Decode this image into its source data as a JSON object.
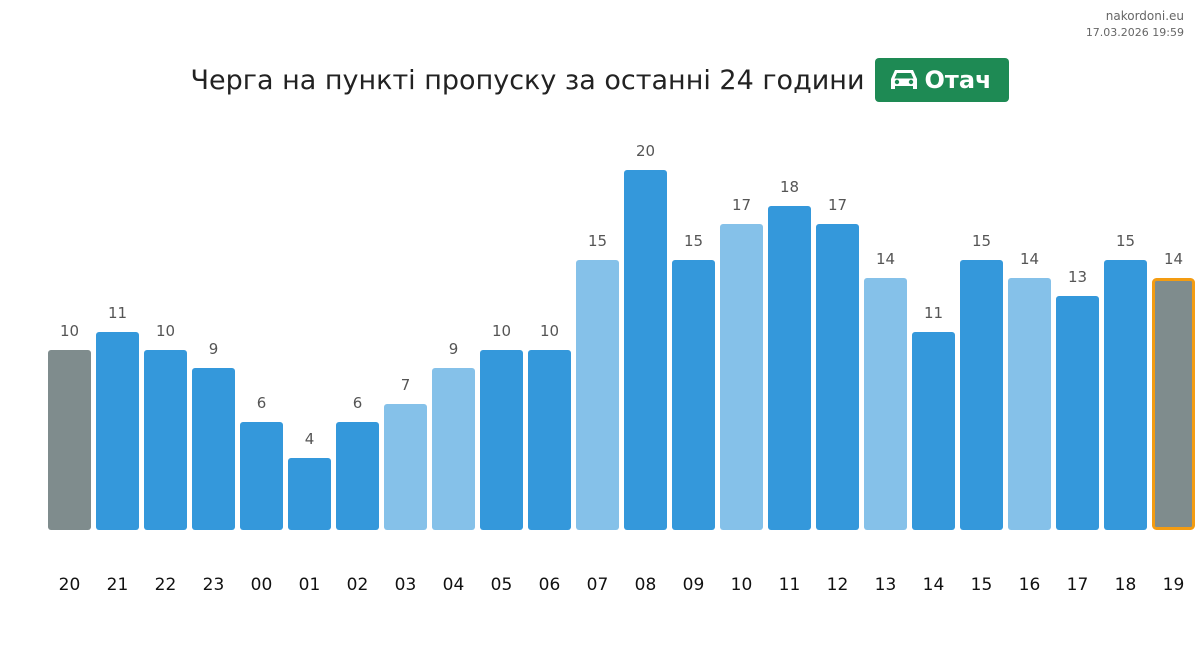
{
  "header": {
    "site": "nakordoni.eu",
    "timestamp": "17.03.2026 19:59",
    "title": "Черга на пункті пропуску за останні 24 години",
    "badge_label": "Отач",
    "badge_icon": "car-icon",
    "badge_color": "#1e8a54"
  },
  "chart_data": {
    "type": "bar",
    "categories": [
      "20",
      "21",
      "22",
      "23",
      "00",
      "01",
      "02",
      "03",
      "04",
      "05",
      "06",
      "07",
      "08",
      "09",
      "10",
      "11",
      "12",
      "13",
      "14",
      "15",
      "16",
      "17",
      "18",
      "19"
    ],
    "values": [
      10,
      11,
      10,
      9,
      6,
      4,
      6,
      7,
      9,
      10,
      10,
      15,
      20,
      15,
      17,
      18,
      17,
      14,
      11,
      15,
      14,
      13,
      15,
      14
    ],
    "bar_colors": [
      "#7f8c8d",
      "#3498db",
      "#3498db",
      "#3498db",
      "#3498db",
      "#3498db",
      "#3498db",
      "#85c1e9",
      "#85c1e9",
      "#3498db",
      "#3498db",
      "#85c1e9",
      "#3498db",
      "#3498db",
      "#85c1e9",
      "#3498db",
      "#3498db",
      "#85c1e9",
      "#3498db",
      "#3498db",
      "#85c1e9",
      "#3498db",
      "#3498db",
      "#7f8c8d"
    ],
    "highlight_index": 23,
    "highlight_color": "#f39c12",
    "title": "Черга на пункті пропуску за останні 24 години",
    "xlabel": "",
    "ylabel": "",
    "ylim": [
      0,
      20
    ],
    "grid": false,
    "data_labels": true
  }
}
